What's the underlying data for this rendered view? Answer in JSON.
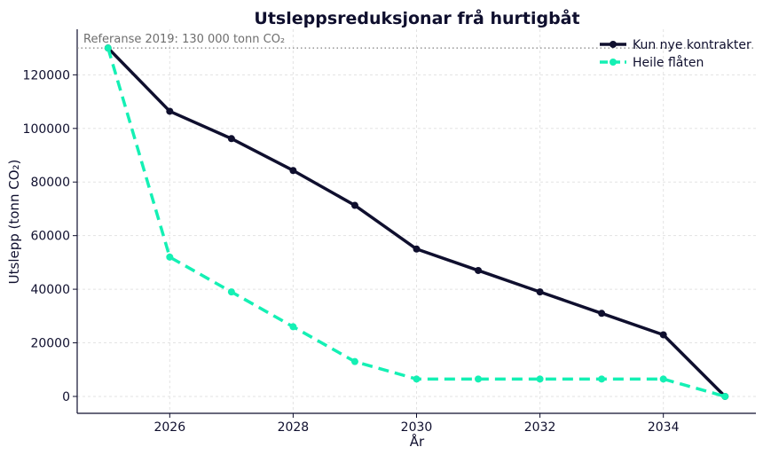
{
  "chart_data": {
    "type": "line",
    "title": "Utsleppsreduksjonar frå hurtigbåt",
    "xlabel": "År",
    "ylabel": "Utslepp (tonn CO₂)",
    "x": [
      2025,
      2026,
      2027,
      2028,
      2029,
      2030,
      2031,
      2032,
      2033,
      2034,
      2035
    ],
    "xlim": [
      2024.5,
      2035.5
    ],
    "ylim": [
      -6300,
      137000
    ],
    "xticks": [
      2026,
      2028,
      2030,
      2032,
      2034
    ],
    "yticks": [
      0,
      20000,
      40000,
      60000,
      80000,
      100000,
      120000
    ],
    "grid": true,
    "legend": "top-right",
    "reference": {
      "value": 130000,
      "label": "Referanse 2019: 130 000 tonn CO₂",
      "color": "#808080"
    },
    "series": [
      {
        "name": "Kun nye kontrakter",
        "color": "#0f0f2e",
        "style": "solid",
        "values": [
          130000,
          106400,
          96200,
          84300,
          71300,
          55000,
          47000,
          39000,
          31000,
          23000,
          0
        ]
      },
      {
        "name": "Heile flåten",
        "color": "#14f0b4",
        "style": "dashed",
        "values": [
          130000,
          52000,
          39000,
          26000,
          13000,
          6500,
          6500,
          6500,
          6500,
          6500,
          0
        ]
      }
    ]
  }
}
